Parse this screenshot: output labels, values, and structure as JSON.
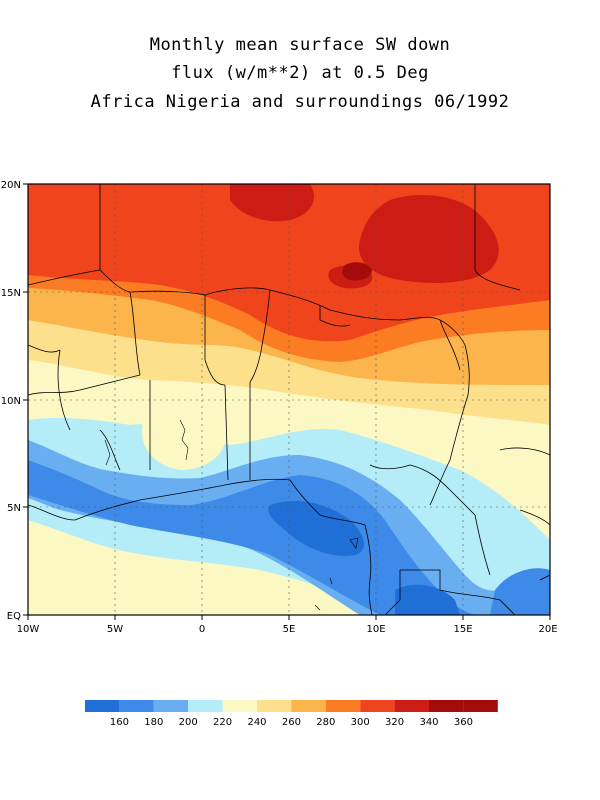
{
  "title": {
    "line1": "Monthly mean surface SW down",
    "line2": "flux (w/m**2) at 0.5 Deg",
    "line3": "Africa Nigeria and surroundings 06/1992"
  },
  "map": {
    "lon_range": [
      -10,
      20
    ],
    "lat_range": [
      0,
      20
    ],
    "x_ticks": [
      "10W",
      "5W",
      "0",
      "5E",
      "10E",
      "15E",
      "20E"
    ],
    "y_ticks": [
      "EQ",
      "5N",
      "10N",
      "15N",
      "20N"
    ],
    "grid": "dotted"
  },
  "legend": {
    "labels": [
      "160",
      "180",
      "200",
      "220",
      "240",
      "260",
      "280",
      "300",
      "320",
      "340",
      "360"
    ],
    "colors": [
      "#1f6fd6",
      "#3d8ae8",
      "#6aaef2",
      "#b4ecf8",
      "#fcf8c4",
      "#fce08c",
      "#fcb44c",
      "#fc7c24",
      "#f0441c",
      "#cc1c14",
      "#a40c0c"
    ]
  }
}
